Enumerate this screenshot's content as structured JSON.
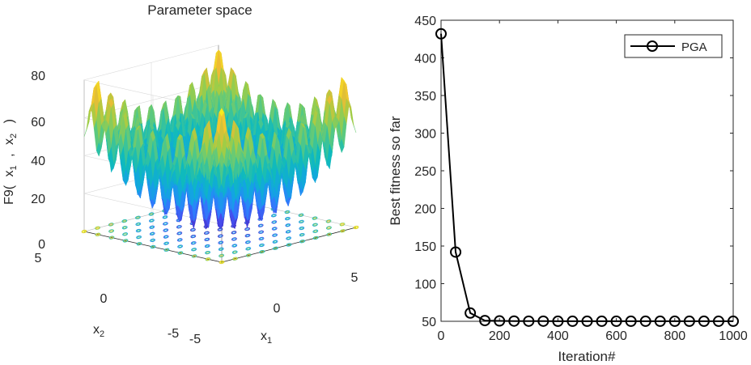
{
  "chart_data": [
    {
      "type": "surface",
      "title": "Parameter space",
      "zlabel": "F9( x_1 , x_2 )",
      "zlabel_parts": [
        "F9(",
        "x",
        "1",
        ",",
        "x",
        "2",
        ")"
      ],
      "x1label": "x",
      "x1sub": "1",
      "x2label": "x",
      "x2sub": "2",
      "x1ticks": [
        "-5",
        "0",
        "5"
      ],
      "x2ticks": [
        "-5",
        "0",
        "5"
      ],
      "zticks": [
        "0",
        "20",
        "40",
        "60",
        "80"
      ],
      "x1lim": [
        -5,
        5
      ],
      "x2lim": [
        -5,
        5
      ],
      "zlim": [
        0,
        80
      ],
      "contour_on_floor": true,
      "grid": true
    },
    {
      "type": "line",
      "xlabel": "Iteration#",
      "ylabel": "Best fitness so far",
      "xlim": [
        0,
        1000
      ],
      "ylim": [
        50,
        450
      ],
      "xticks": [
        "0",
        "200",
        "400",
        "600",
        "800",
        "1000"
      ],
      "yticks": [
        "50",
        "100",
        "150",
        "200",
        "250",
        "300",
        "350",
        "400",
        "450"
      ],
      "legend_position": "top-right",
      "series": [
        {
          "name": "PGA",
          "marker": "circle",
          "color": "#000000",
          "x": [
            0,
            50,
            100,
            150,
            200,
            250,
            300,
            350,
            400,
            450,
            500,
            550,
            600,
            650,
            700,
            750,
            800,
            850,
            900,
            950,
            1000
          ],
          "y": [
            432,
            142,
            61,
            51,
            50.5,
            50.3,
            50.2,
            50.2,
            50.1,
            50.1,
            50.1,
            50.1,
            50.1,
            50.1,
            50.1,
            50.1,
            50.1,
            50.1,
            50.1,
            50.1,
            50.1
          ]
        }
      ]
    }
  ]
}
